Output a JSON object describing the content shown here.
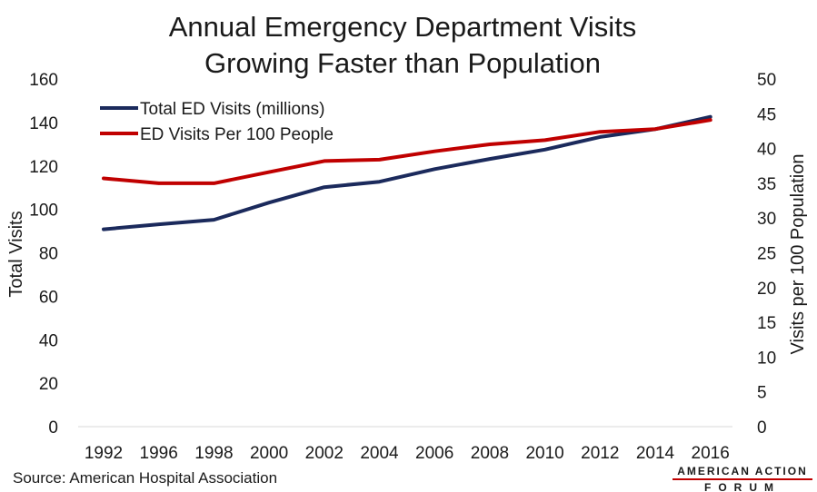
{
  "chart_data": {
    "type": "line",
    "title_line1": "Annual Emergency Department Visits",
    "title_line2": "Growing Faster than Population",
    "categories": [
      "1992",
      "1996",
      "1998",
      "2000",
      "2002",
      "2004",
      "2006",
      "2008",
      "2010",
      "2012",
      "2014",
      "2016"
    ],
    "ylabel_left": "Total Visits",
    "ylabel_right": "Visits per 100 Population",
    "ylim_left": [
      0,
      160
    ],
    "ylim_right": [
      0,
      50
    ],
    "yticks_left": [
      "0",
      "20",
      "40",
      "60",
      "80",
      "100",
      "120",
      "140",
      "160"
    ],
    "yticks_right": [
      "0",
      "5",
      "10",
      "15",
      "20",
      "25",
      "30",
      "35",
      "40",
      "45",
      "50"
    ],
    "grid": false,
    "legend_position": "top-left",
    "series": [
      {
        "name": "Total ED Visits (millions)",
        "axis": "left",
        "color": "#1b2a5c",
        "values": [
          90.8,
          93.1,
          95.2,
          103.1,
          110.2,
          112.7,
          118.5,
          123.2,
          127.5,
          133.3,
          136.9,
          142.6
        ]
      },
      {
        "name": "ED Visits Per 100 People",
        "axis": "right",
        "color": "#c00000",
        "values": [
          35.7,
          35.0,
          35.0,
          36.6,
          38.2,
          38.4,
          39.6,
          40.6,
          41.2,
          42.4,
          42.8,
          44.1
        ]
      }
    ]
  },
  "source": "Source: American Hospital Association",
  "logo": {
    "line1": "AMERICAN ACTION",
    "line2": "FORUM",
    "accent": "#c00000"
  }
}
